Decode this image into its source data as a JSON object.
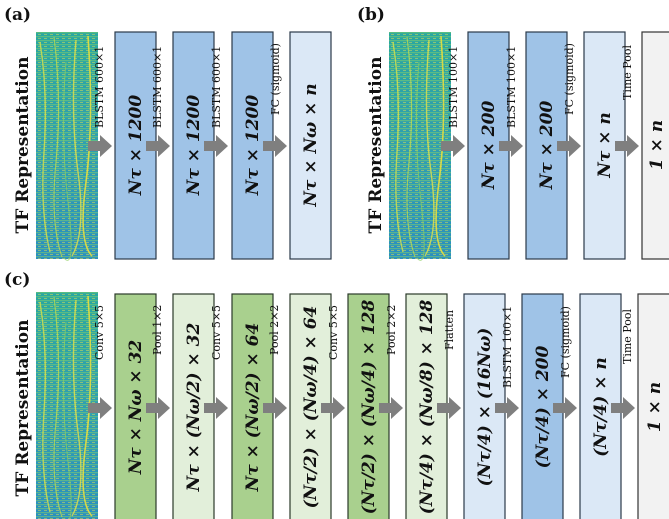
{
  "panels": [
    {
      "id": "a",
      "label": "(a)",
      "input_label": "TF Representation",
      "blocks": [
        {
          "op": "BLSTM 600×1",
          "text": "Nτ × 1200",
          "color": "#9fc3e7"
        },
        {
          "op": "BLSTM 600×1",
          "text": "Nτ × 1200",
          "color": "#9fc3e7"
        },
        {
          "op": "BLSTM 600×1",
          "text": "Nτ × 1200",
          "color": "#9fc3e7"
        },
        {
          "op": "FC (sigmoid)",
          "text": "Nτ × Nω × n",
          "color": "#dbe8f6"
        }
      ]
    },
    {
      "id": "b",
      "label": "(b)",
      "input_label": "TF Representation",
      "blocks": [
        {
          "op": "BLSTM 100×1",
          "text": "Nτ × 200",
          "color": "#9fc3e7"
        },
        {
          "op": "BLSTM 100×1",
          "text": "Nτ × 200",
          "color": "#9fc3e7"
        },
        {
          "op": "FC (sigmoid)",
          "text": "Nτ × n",
          "color": "#dbe8f6"
        },
        {
          "op": "Time Pool",
          "text": "1 × n",
          "color": "#f2f2f2"
        }
      ]
    },
    {
      "id": "c",
      "label": "(c)",
      "input_label": "TF Representation",
      "blocks": [
        {
          "op": "Conv 5×5",
          "text": "Nτ × Nω × 32",
          "color": "#a9d08e"
        },
        {
          "op": "Pool 1×2",
          "text": "Nτ × (Nω/2) × 32",
          "color": "#e2efda"
        },
        {
          "op": "Conv 5×5",
          "text": "Nτ × (Nω/2) × 64",
          "color": "#a9d08e"
        },
        {
          "op": "Pool 2×2",
          "text": "(Nτ/2) × (Nω/4) × 64",
          "color": "#e2efda"
        },
        {
          "op": "Conv 5×5",
          "text": "(Nτ/2) × (Nω/4) × 128",
          "color": "#a9d08e"
        },
        {
          "op": "Pool 2×2",
          "text": "(Nτ/4) × (Nω/8) × 128",
          "color": "#e2efda"
        },
        {
          "op": "Flatten",
          "text": "(Nτ/4) × (16Nω)",
          "color": "#dbe8f6"
        },
        {
          "op": "BLSTM 100×1",
          "text": "(Nτ/4) × 200",
          "color": "#9fc3e7"
        },
        {
          "op": "FC (sigmoid)",
          "text": "(Nτ/4) × n",
          "color": "#dbe8f6"
        },
        {
          "op": "Time Pool",
          "text": "1 × n",
          "color": "#f2f2f2"
        }
      ]
    }
  ]
}
